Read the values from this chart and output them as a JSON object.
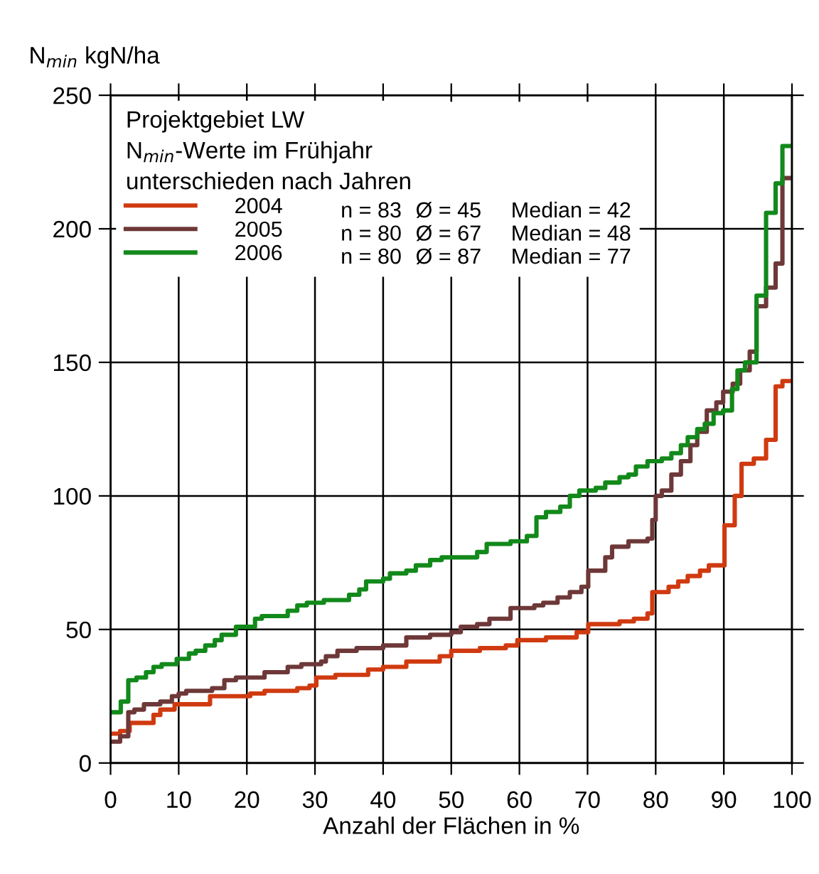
{
  "chart_data": {
    "type": "step",
    "ylabel": "N$_{min}$ kgN/ha",
    "xlabel": "Anzahl der Flächen in %",
    "legend_title": "Projektgebiet LW\nN$_{min}$-Werte im Frühjahr\nunterschieden nach Jahren",
    "annotations": [
      "n = 83",
      "Ø = 45",
      "Median = 42",
      "n = 80",
      "Ø = 67",
      "Median = 48",
      "n = 80",
      "Ø = 87",
      "Median = 77"
    ],
    "series": [
      {
        "name": "2004",
        "color": "#d03a10",
        "x": [
          0,
          1.4,
          2.8,
          6.3,
          7.3,
          9.4,
          14.6,
          20.5,
          22.6,
          27.4,
          29.2,
          30.2,
          33,
          37.8,
          40,
          43.4,
          48.3,
          50,
          54.2,
          58,
          59.7,
          63.9,
          68.4,
          70.1,
          72.2,
          74.7,
          76.8,
          78.8,
          79.5,
          81.9,
          83.3,
          84.7,
          86.5,
          87.8,
          90.1,
          91.6,
          92.6,
          94.4,
          96.2,
          97.6,
          98.6,
          100
        ],
        "values": [
          11,
          12,
          15,
          18,
          20,
          22,
          25,
          26,
          27,
          28,
          29,
          32,
          33,
          35,
          36,
          38,
          40,
          42,
          43,
          44,
          46,
          47,
          49,
          52,
          52,
          53,
          54,
          56,
          64,
          66,
          68,
          70,
          72,
          74,
          89,
          100,
          112,
          114,
          121,
          141,
          143,
          143
        ]
      },
      {
        "name": "2005",
        "color": "#6e3838",
        "x": [
          0,
          1.4,
          2.6,
          3.5,
          4.9,
          7.3,
          9,
          10,
          11.1,
          14.9,
          16.7,
          18.4,
          22.6,
          26,
          28,
          30.9,
          31.6,
          33.3,
          36.1,
          40,
          43.4,
          46.9,
          50,
          51.4,
          53.8,
          55.6,
          58.7,
          62.2,
          63.5,
          65.6,
          67.4,
          69.1,
          70.1,
          72.6,
          73.6,
          76,
          78.8,
          79.5,
          80,
          80.9,
          82.3,
          83.7,
          85.1,
          86.1,
          87.5,
          88.9,
          89.9,
          91.3,
          92.4,
          93.8,
          94.8,
          96.2,
          97.6,
          98.6,
          100
        ],
        "values": [
          8,
          10,
          19,
          20,
          22,
          23,
          25,
          26,
          27,
          28,
          31,
          32,
          34,
          36,
          37,
          38,
          40,
          42,
          43,
          44,
          47,
          48,
          49,
          51,
          52,
          54,
          58,
          59,
          60,
          62,
          64,
          66,
          72,
          77,
          81,
          83,
          84,
          91,
          100,
          102,
          108,
          113,
          119,
          124,
          132,
          135,
          139,
          142,
          147,
          154,
          171,
          178,
          187,
          219,
          219
        ]
      },
      {
        "name": "2006",
        "color": "#12891a",
        "x": [
          0,
          1.5,
          2.6,
          3.8,
          5.2,
          6.3,
          7.5,
          9.7,
          11.5,
          12.5,
          13.9,
          15.3,
          16.3,
          18.4,
          21.2,
          22.2,
          26,
          27.4,
          28.8,
          31.3,
          35,
          36.5,
          37.5,
          40,
          41,
          43.4,
          44.8,
          46.9,
          48.6,
          51.4,
          53.8,
          55.2,
          58.7,
          61.1,
          62.5,
          63.9,
          66,
          67.4,
          68.8,
          71.2,
          72.6,
          74.7,
          76,
          77.1,
          78.8,
          80.9,
          82.3,
          83.7,
          84.7,
          86.1,
          87.2,
          88.5,
          89.9,
          91.2,
          92,
          93.1,
          94.8,
          96.2,
          97.6,
          98.6,
          100
        ],
        "values": [
          19,
          23,
          31,
          32,
          34,
          36,
          37,
          39,
          41,
          42,
          44,
          46,
          48,
          51,
          54,
          55,
          57,
          59,
          60,
          61,
          63,
          65,
          68,
          69,
          71,
          72,
          74,
          76,
          77,
          77,
          79,
          82,
          83,
          85,
          92,
          94,
          96,
          100,
          102,
          103,
          105,
          107,
          108,
          111,
          113,
          114,
          116,
          119,
          122,
          125,
          127,
          131,
          132,
          140,
          147,
          150,
          175,
          206,
          217,
          231,
          231
        ]
      }
    ],
    "xlim": [
      0,
      100
    ],
    "ylim": [
      0,
      250
    ],
    "xticks": [
      0,
      10,
      20,
      30,
      40,
      50,
      60,
      70,
      80,
      90,
      100
    ],
    "yticks": [
      0,
      50,
      100,
      150,
      200,
      250
    ],
    "grid": true,
    "legend": "top left",
    "line_style": "solid",
    "marker": "none"
  }
}
